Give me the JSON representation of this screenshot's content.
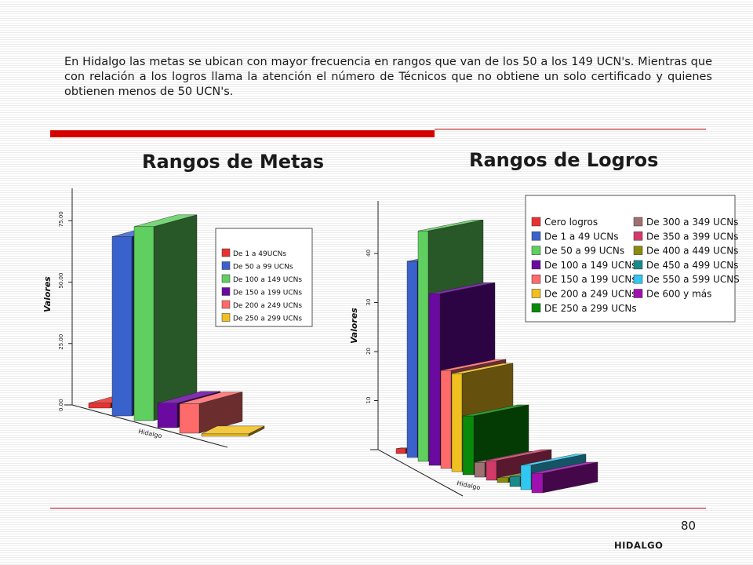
{
  "intro_text": "En Hidalgo las metas se ubican con mayor frecuencia en rangos que van de los 50 a los 149 UCN's. Mientras que con relación a los logros llama la atención el número de Técnicos que no obtiene  un solo certificado y quienes obtienen menos de 50 UCN's.",
  "page_number": "80",
  "footer": "HIDALGO",
  "chart_data": [
    {
      "type": "bar",
      "title": "Rangos de Metas",
      "ylabel": "Valores",
      "categories": [
        "Hidalgo"
      ],
      "category_label": "Hidalgo",
      "yticks": [
        "0.00",
        "25.00",
        "50.00",
        "75.00"
      ],
      "ylim": [
        0,
        85
      ],
      "legend_position": "right",
      "series": [
        {
          "name": "De 1 a 49UCNs",
          "values": [
            2
          ],
          "color": "#e83232"
        },
        {
          "name": "De 50 a 99 UCNs",
          "values": [
            73
          ],
          "color": "#3a62cc"
        },
        {
          "name": "De 100 a 149 UCNs",
          "values": [
            79
          ],
          "color": "#5fcf5f"
        },
        {
          "name": "De 150 a 199 UCNs",
          "values": [
            10
          ],
          "color": "#6a0aa0"
        },
        {
          "name": "De 200 a 249 UCNs",
          "values": [
            12
          ],
          "color": "#ff6a6a"
        },
        {
          "name": "De 250 a 299 UCNs",
          "values": [
            1
          ],
          "color": "#f0c020"
        }
      ]
    },
    {
      "type": "bar",
      "title": "Rangos de Logros",
      "ylabel": "Valores",
      "categories": [
        "Hidalgo"
      ],
      "category_label": "Hidalgo",
      "yticks": [
        "10",
        "20",
        "30",
        "40"
      ],
      "ylim": [
        0,
        48
      ],
      "legend_position": "top-right",
      "series": [
        {
          "name": "Cero logros",
          "values": [
            1
          ],
          "color": "#e83232"
        },
        {
          "name": "De 1 a 49 UCNs",
          "values": [
            40
          ],
          "color": "#3a62cc"
        },
        {
          "name": "De 50 a 99 UCNs",
          "values": [
            47
          ],
          "color": "#5fcf5f"
        },
        {
          "name": "De 100 a 149 UCNs",
          "values": [
            35
          ],
          "color": "#6a0aa0"
        },
        {
          "name": "DE 150 a 199 UCNs",
          "values": [
            20
          ],
          "color": "#ff6a6a"
        },
        {
          "name": "De 200 a 249 UCNs",
          "values": [
            20
          ],
          "color": "#f0c020"
        },
        {
          "name": "DE 250 a 299 UCNs",
          "values": [
            12
          ],
          "color": "#0a8a0a"
        },
        {
          "name": "De 300 a 349 UCNs",
          "values": [
            3
          ],
          "color": "#a07070"
        },
        {
          "name": "De 350 a 399 UCNs",
          "values": [
            4
          ],
          "color": "#d23a6a"
        },
        {
          "name": "De 400 a 449 UCNs",
          "values": [
            1
          ],
          "color": "#8a8a10"
        },
        {
          "name": "De 450 a 499 UCNs",
          "values": [
            2
          ],
          "color": "#1a8a8a"
        },
        {
          "name": "De 550 a 599 UCNS",
          "values": [
            5
          ],
          "color": "#30c8f0"
        },
        {
          "name": "De 600 y más",
          "values": [
            4
          ],
          "color": "#a010b0"
        }
      ]
    }
  ]
}
